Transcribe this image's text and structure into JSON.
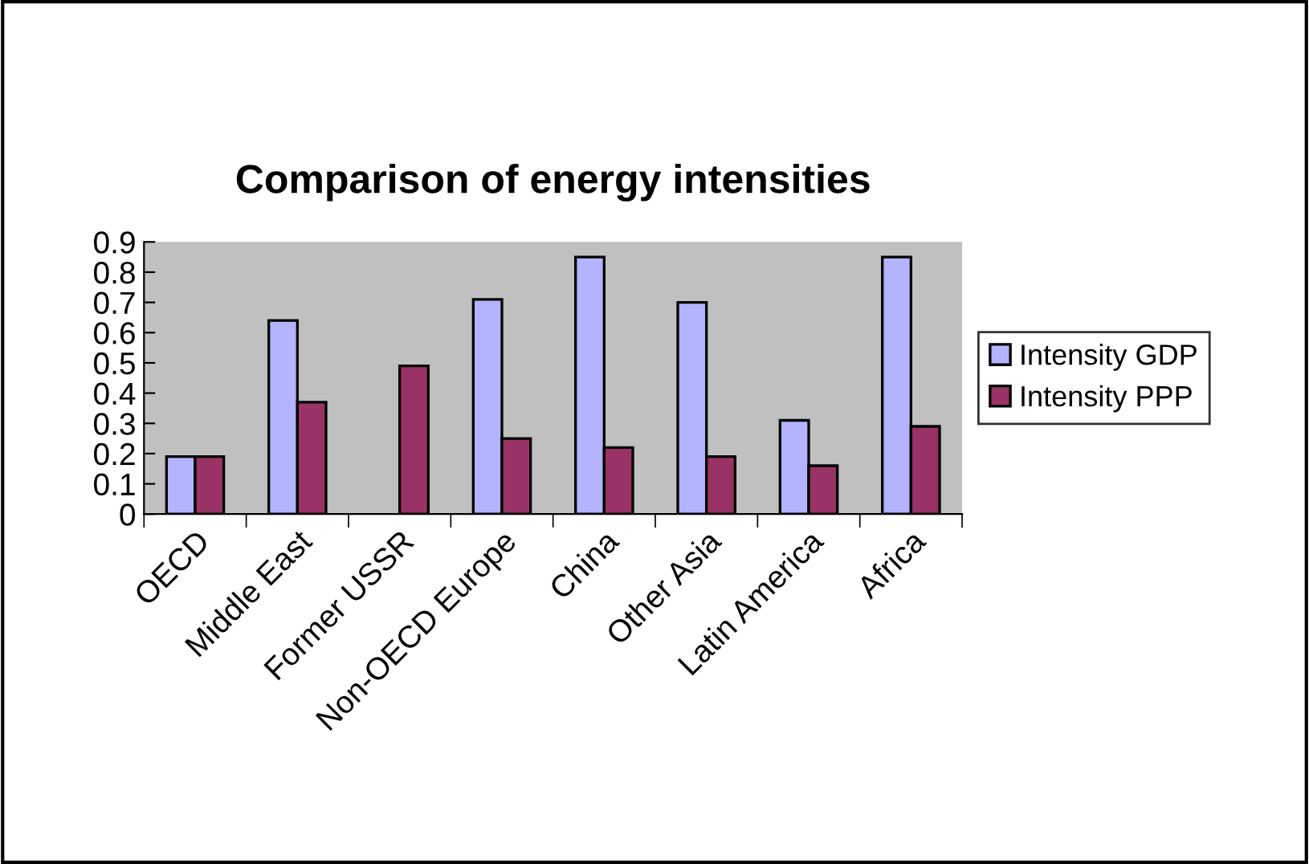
{
  "chart_data": {
    "type": "bar",
    "title": "Comparison of energy intensities",
    "categories": [
      "OECD",
      "Middle East",
      "Former USSR",
      "Non-OECD Europe",
      "China",
      "Other Asia",
      "Latin America",
      "Africa"
    ],
    "series": [
      {
        "name": "Intensity GDP",
        "color": "#b3b3ff",
        "values": [
          0.19,
          0.64,
          null,
          0.71,
          0.85,
          0.7,
          0.31,
          0.85
        ]
      },
      {
        "name": "Intensity PPP",
        "color": "#993366",
        "values": [
          0.19,
          0.37,
          0.49,
          0.25,
          0.22,
          0.19,
          0.16,
          0.29
        ]
      }
    ],
    "ylim": [
      0,
      0.9
    ],
    "yticks": [
      0,
      0.1,
      0.2,
      0.3,
      0.4,
      0.5,
      0.6,
      0.7,
      0.8,
      0.9
    ],
    "grid": false,
    "legend": "right"
  }
}
